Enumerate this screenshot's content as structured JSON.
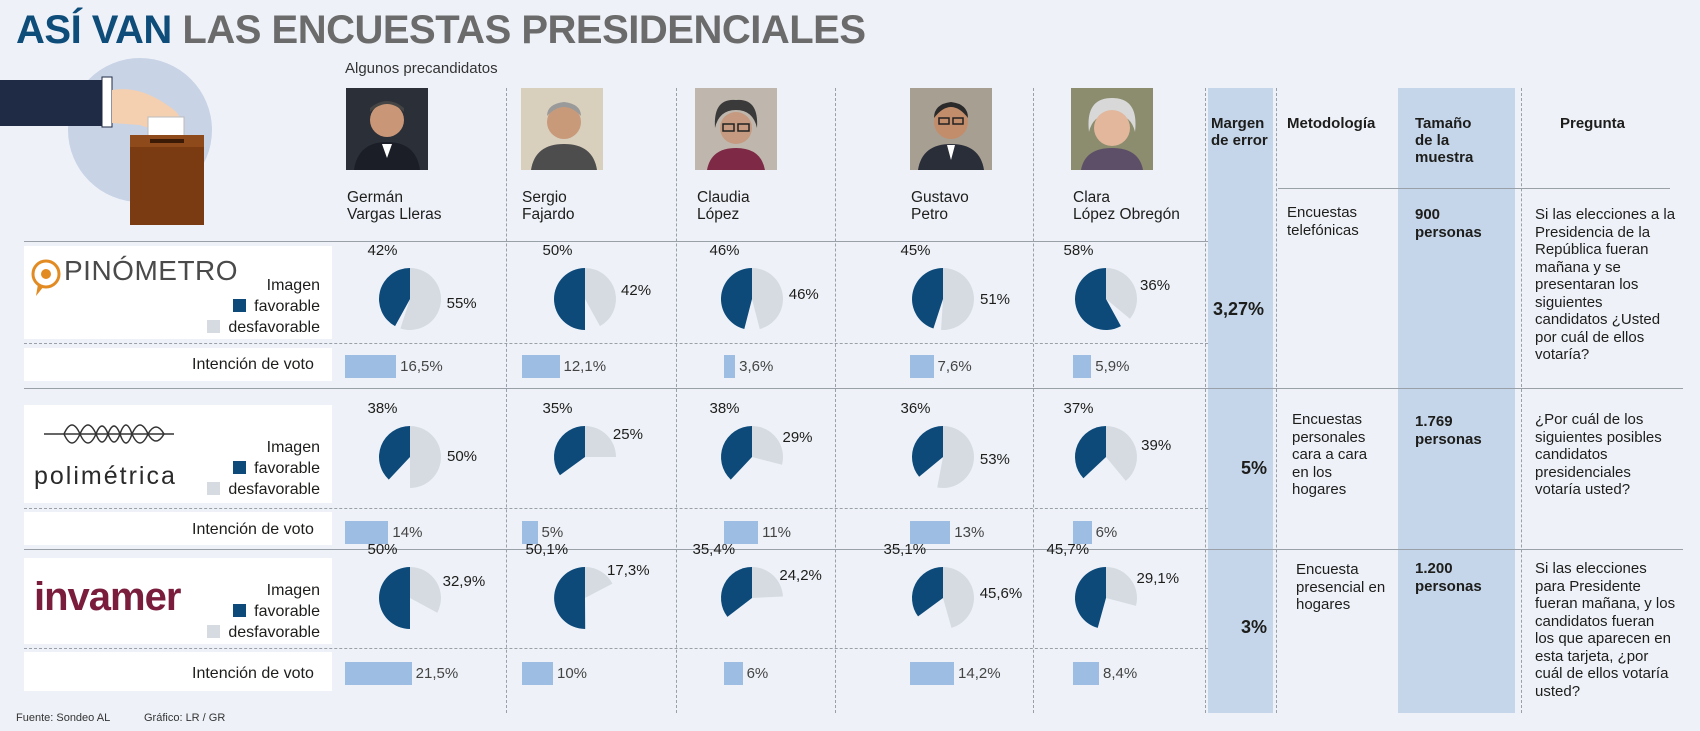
{
  "header": {
    "title_part1": "ASÍ VAN",
    "title_part2": "LAS ENCUESTAS PRESIDENCIALES",
    "subtitle": "Algunos precandidatos"
  },
  "candidates": [
    {
      "name_line1": "Germán",
      "name_line2": "Vargas Lleras"
    },
    {
      "name_line1": "Sergio",
      "name_line2": "Fajardo"
    },
    {
      "name_line1": "Claudia",
      "name_line2": "López"
    },
    {
      "name_line1": "Gustavo",
      "name_line2": "Petro"
    },
    {
      "name_line1": "Clara",
      "name_line2": "López Obregón"
    }
  ],
  "columns": {
    "margin": {
      "line1": "Margen",
      "line2": "de error"
    },
    "methodology": "Metodología",
    "sample": {
      "line1": "Tamaño",
      "line2": "de la",
      "line3": "muestra"
    },
    "question": "Pregunta"
  },
  "legend": {
    "line1": "Imagen",
    "favorable": "favorable",
    "unfavorable": "desfavorable"
  },
  "intent_label": "Intención de voto",
  "colors": {
    "favorable": "#0d4a7a",
    "unfavorable": "#d6dbe2",
    "bar": "#9dbde2",
    "band": "#c5d6ea"
  },
  "pollsters": [
    {
      "logo": "PINÓMETRO",
      "margin": "3,27%",
      "methodology": [
        "Encuestas",
        "telefónicas"
      ],
      "sample": [
        "900",
        "personas"
      ],
      "question": [
        "Si las elecciones a la",
        "Presidencia de la",
        "República fueran",
        "mañana y se",
        "presentaran los",
        "siguientes",
        "candidatos ¿Usted",
        "por cuál de ellos",
        "votaría?"
      ]
    },
    {
      "logo": "polimétrica",
      "margin": "5%",
      "methodology": [
        "Encuestas",
        "personales",
        "cara a cara",
        "en los",
        "hogares"
      ],
      "sample": [
        "1.769",
        "personas"
      ],
      "question": [
        "¿Por cuál de los",
        "siguientes posibles",
        "candidatos",
        "presidenciales",
        "votaría usted?"
      ]
    },
    {
      "logo": "invamer",
      "margin": "3%",
      "methodology": [
        "Encuesta",
        "presencial en",
        "hogares"
      ],
      "sample": [
        "1.200",
        "personas"
      ],
      "question": [
        "Si las elecciones",
        "para Presidente",
        "fueran mañana, y los",
        "candidatos fueran",
        "los que aparecen en",
        "esta tarjeta, ¿por",
        "cuál de ellos votaría",
        "usted?"
      ]
    }
  ],
  "chart_data": {
    "type": "pie",
    "title": "ASÍ VAN LAS ENCUESTAS PRESIDENCIALES",
    "categories": [
      "Germán Vargas Lleras",
      "Sergio Fajardo",
      "Claudia López",
      "Gustavo Petro",
      "Clara López Obregón"
    ],
    "series": [
      {
        "name": "PINÓMETRO",
        "favorable": [
          42,
          50,
          46,
          45,
          58
        ],
        "unfavorable": [
          55,
          42,
          46,
          51,
          36
        ],
        "favorable_labels": [
          "42%",
          "50%",
          "46%",
          "45%",
          "58%"
        ],
        "unfavorable_labels": [
          "55%",
          "42%",
          "46%",
          "51%",
          "36%"
        ],
        "vote_intent": [
          16.5,
          12.1,
          3.6,
          7.6,
          5.9
        ],
        "vote_intent_labels": [
          "16,5%",
          "12,1%",
          "3,6%",
          "7,6%",
          "5,9%"
        ]
      },
      {
        "name": "polimétrica",
        "favorable": [
          38,
          35,
          38,
          36,
          37
        ],
        "unfavorable": [
          50,
          25,
          29,
          53,
          39
        ],
        "favorable_labels": [
          "38%",
          "35%",
          "38%",
          "36%",
          "37%"
        ],
        "unfavorable_labels": [
          "50%",
          "25%",
          "29%",
          "53%",
          "39%"
        ],
        "vote_intent": [
          14,
          5,
          11,
          13,
          6
        ],
        "vote_intent_labels": [
          "14%",
          "5%",
          "11%",
          "13%",
          "6%"
        ]
      },
      {
        "name": "invamer",
        "favorable": [
          50,
          50.1,
          35.4,
          35.1,
          45.7
        ],
        "unfavorable": [
          32.9,
          17.3,
          24.2,
          45.6,
          29.1
        ],
        "favorable_labels": [
          "50%",
          "50,1%",
          "35,4%",
          "35,1%",
          "45,7%"
        ],
        "unfavorable_labels": [
          "32,9%",
          "17,3%",
          "24,2%",
          "45,6%",
          "29,1%"
        ],
        "vote_intent": [
          21.5,
          10,
          6,
          14.2,
          8.4
        ],
        "vote_intent_labels": [
          "21,5%",
          "10%",
          "6%",
          "14,2%",
          "8,4%"
        ]
      }
    ]
  },
  "footer": {
    "source": "Fuente: Sondeo AL",
    "graphic": "Gráfico: LR / GR"
  }
}
